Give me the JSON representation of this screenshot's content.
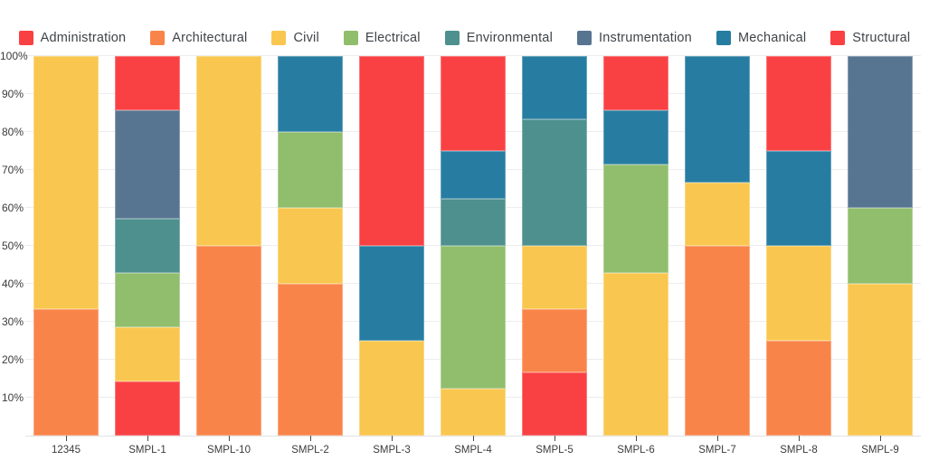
{
  "chart_data": {
    "type": "bar",
    "variant": "stacked-percent",
    "title": "",
    "xlabel": "",
    "ylabel": "",
    "ylim": [
      0,
      100
    ],
    "grid": true,
    "legend_position": "top",
    "ytick_labels": [
      "10%",
      "20%",
      "30%",
      "40%",
      "50%",
      "60%",
      "70%",
      "80%",
      "90%",
      "100%"
    ],
    "categories": [
      "12345",
      "SMPL-1",
      "SMPL-10",
      "SMPL-2",
      "SMPL-3",
      "SMPL-4",
      "SMPL-5",
      "SMPL-6",
      "SMPL-7",
      "SMPL-8",
      "SMPL-9"
    ],
    "series": [
      {
        "name": "Administration",
        "color": "#f94144",
        "values": [
          0,
          14.29,
          0,
          0,
          0,
          0,
          16.67,
          0,
          0,
          0,
          0
        ]
      },
      {
        "name": "Architectural",
        "color": "#f9844a",
        "values": [
          33.33,
          0,
          50,
          40,
          0,
          0,
          16.67,
          0,
          50,
          25,
          0
        ]
      },
      {
        "name": "Civil",
        "color": "#f9c74f",
        "values": [
          66.67,
          14.29,
          50,
          20,
          25,
          12.5,
          16.67,
          42.86,
          16.67,
          25,
          40
        ]
      },
      {
        "name": "Electrical",
        "color": "#90be6d",
        "values": [
          0,
          14.29,
          0,
          20,
          0,
          37.5,
          0,
          28.57,
          0,
          0,
          20
        ]
      },
      {
        "name": "Environmental",
        "color": "#4d908e",
        "values": [
          0,
          14.29,
          0,
          0,
          0,
          12.5,
          33.33,
          0,
          0,
          0,
          0
        ]
      },
      {
        "name": "Instrumentation",
        "color": "#577590",
        "values": [
          0,
          28.57,
          0,
          0,
          0,
          0,
          0,
          0,
          0,
          0,
          40
        ]
      },
      {
        "name": "Mechanical",
        "color": "#277da1",
        "values": [
          0,
          0,
          0,
          20,
          25,
          12.5,
          16.67,
          14.29,
          33.33,
          25,
          0
        ]
      },
      {
        "name": "Structural",
        "color": "#f94144",
        "values": [
          0,
          14.29,
          0,
          0,
          50,
          25,
          0,
          14.29,
          0,
          25,
          0
        ]
      }
    ]
  }
}
